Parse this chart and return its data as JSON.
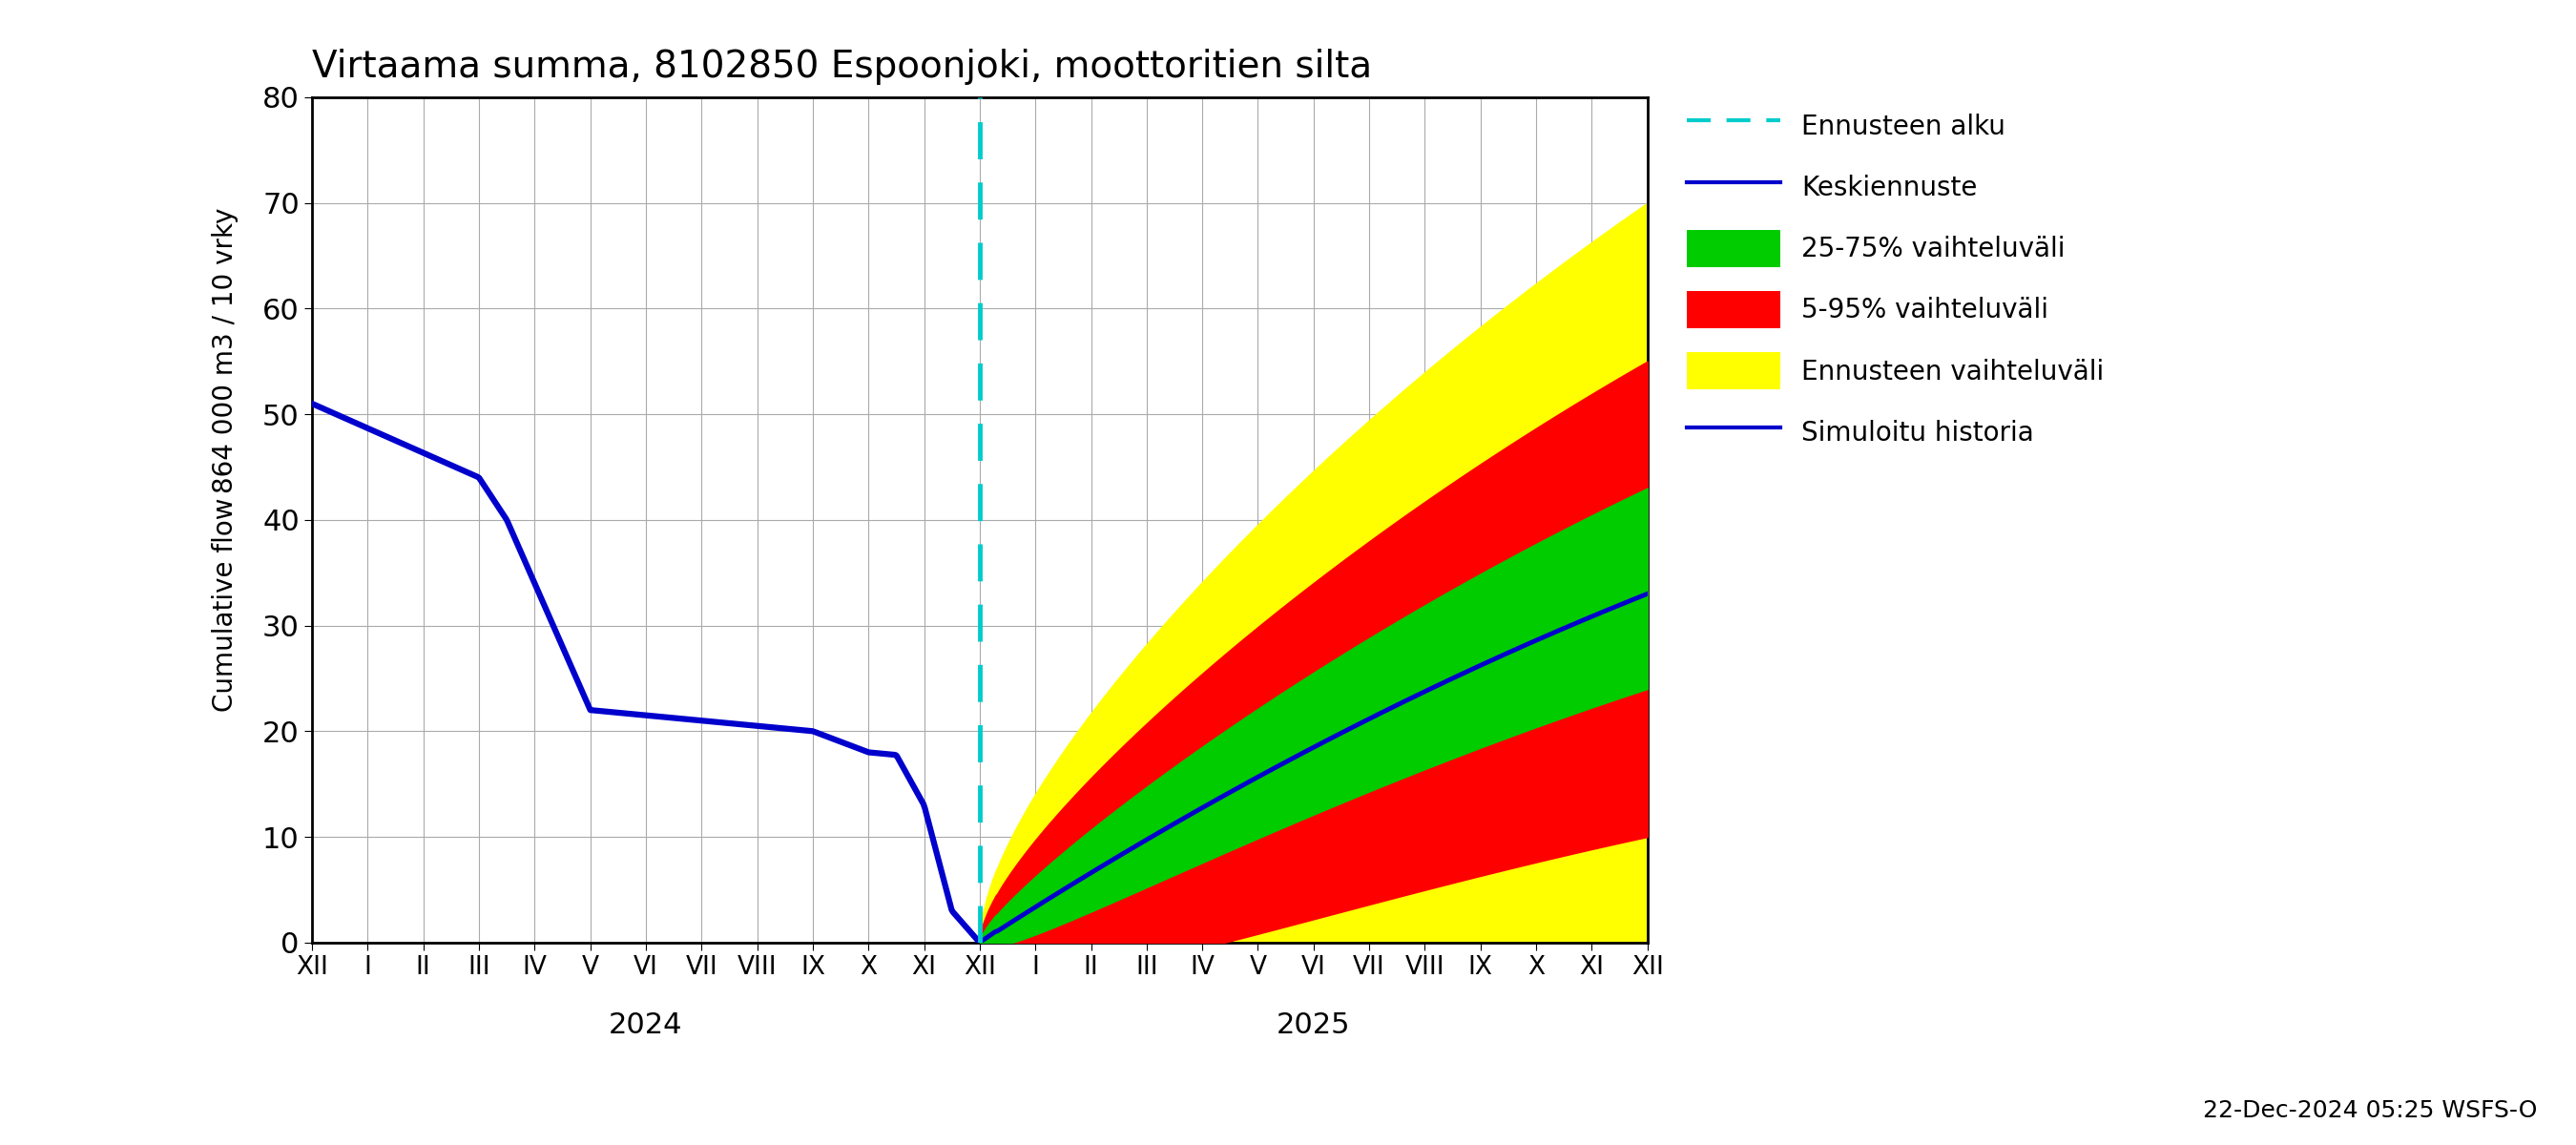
{
  "title": "Virtaama summa, 8102850 Espoonjoki, moottoritien silta",
  "ylabel_top": "864 000 m3 / 10 vrky",
  "ylabel_bottom": "Cumulative flow",
  "timestamp": "22-Dec-2024 05:25 WSFS-O",
  "ylim": [
    0,
    80
  ],
  "yticks": [
    0,
    10,
    20,
    30,
    40,
    50,
    60,
    70,
    80
  ],
  "background_color": "#ffffff",
  "plot_bg_color": "#ffffff",
  "grid_color": "#aaaaaa",
  "history_color": "#0000cc",
  "mean_color": "#0000cc",
  "band_25_75_color": "#00cc00",
  "band_5_95_color": "#ff0000",
  "band_ennuste_color": "#ffff00",
  "vline_color": "#00cccc",
  "legend_labels": [
    "Ennusteen alku",
    "Keskiennuste",
    "25-75% vaihteluväli",
    "5-95% vaihteluväli",
    "Ennusteen vaihteluväli",
    "Simuloitu historia"
  ],
  "x_month_labels_2024": [
    "XII",
    "I",
    "II",
    "III",
    "IV",
    "V",
    "VI",
    "VII",
    "VIII",
    "IX",
    "X",
    "XI",
    "XII"
  ],
  "x_month_labels_2025": [
    "I",
    "II",
    "III",
    "IV",
    "V",
    "VI",
    "VII",
    "VIII",
    "IX",
    "X",
    "XI",
    "XII"
  ],
  "year_2024_label": "2024",
  "year_2025_label": "2025"
}
